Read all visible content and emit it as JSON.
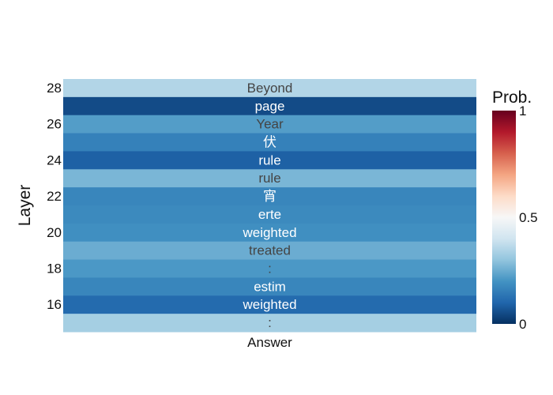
{
  "chart_data": {
    "type": "heatmap",
    "title": "",
    "xlabel": "",
    "ylabel": "Layer",
    "x_categories": [
      "Answer"
    ],
    "y_tick_labels": [
      "28",
      "26",
      "24",
      "22",
      "20",
      "18",
      "16"
    ],
    "cells": [
      {
        "layer": 28,
        "token": "Beyond",
        "prob": 0.35
      },
      {
        "layer": 27,
        "token": "page",
        "prob": 0.05
      },
      {
        "layer": 26,
        "token": "Year",
        "prob": 0.22
      },
      {
        "layer": 25,
        "token": "伏",
        "prob": 0.16
      },
      {
        "layer": 24,
        "token": "rule",
        "prob": 0.09
      },
      {
        "layer": 23,
        "token": "rule",
        "prob": 0.27
      },
      {
        "layer": 22,
        "token": "宵",
        "prob": 0.17
      },
      {
        "layer": 21,
        "token": "erte",
        "prob": 0.18
      },
      {
        "layer": 20,
        "token": "weighted",
        "prob": 0.19
      },
      {
        "layer": 19,
        "token": "treated",
        "prob": 0.25
      },
      {
        "layer": 18,
        "token": ":",
        "prob": 0.21
      },
      {
        "layer": 17,
        "token": "estim",
        "prob": 0.17
      },
      {
        "layer": 16,
        "token": "weighted",
        "prob": 0.11
      },
      {
        "layer": 15,
        "token": ":",
        "prob": 0.33
      }
    ],
    "colorbar": {
      "title": "Prob.",
      "min": 0,
      "max": 1,
      "tick_labels": [
        "1",
        "0.5",
        "0"
      ],
      "colorscale": "RdBu",
      "stops": [
        "#053061",
        "#2166ac",
        "#4393c3",
        "#92c5de",
        "#d1e5f0",
        "#f7f7f7",
        "#fddbc7",
        "#f4a582",
        "#d6604d",
        "#b2182b",
        "#67001f"
      ]
    },
    "grid": false
  }
}
